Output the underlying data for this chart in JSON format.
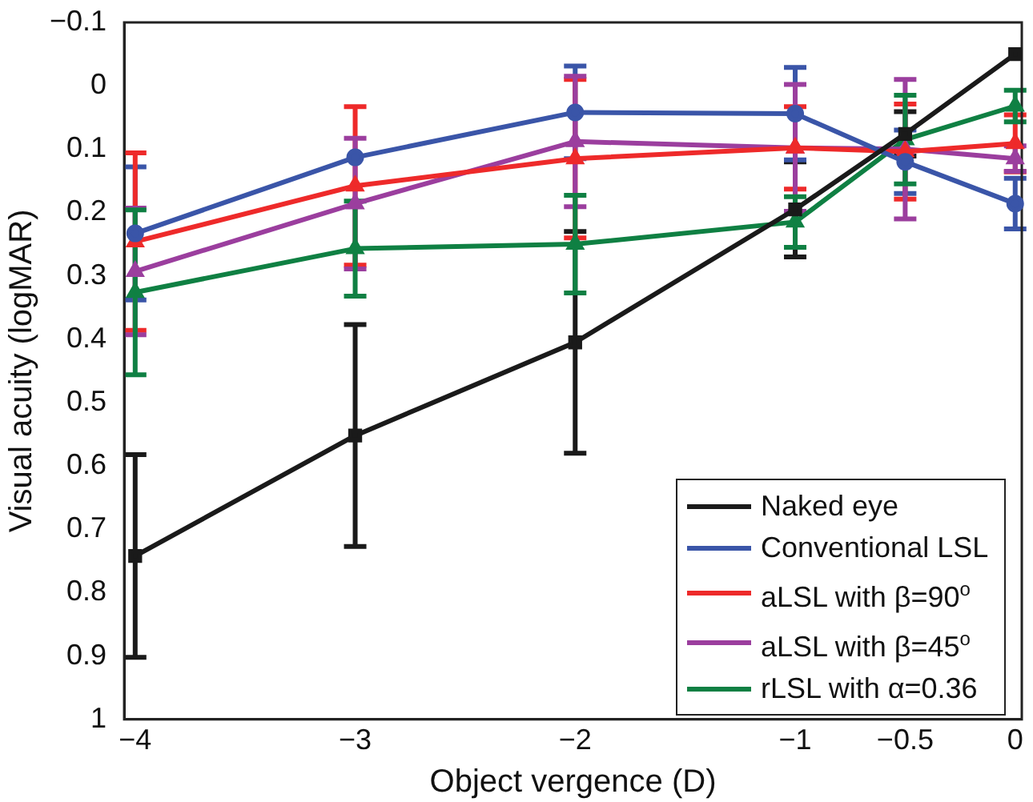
{
  "chart_data": {
    "type": "line",
    "xlabel": "Object vergence (D)",
    "ylabel": "Visual acuity (logMAR)",
    "x": [
      -4,
      -3,
      -2,
      -1,
      -0.5,
      0
    ],
    "xlim": [
      -4.05,
      0.03
    ],
    "xticks": [
      {
        "value": -4,
        "label": "−4"
      },
      {
        "value": -3,
        "label": "−3"
      },
      {
        "value": -2,
        "label": "−2"
      },
      {
        "value": -1,
        "label": "−1"
      },
      {
        "value": -0.5,
        "label": "−0.5"
      },
      0
    ],
    "ylim": [
      1,
      -0.1
    ],
    "yticks": [
      {
        "value": -0.1,
        "label": "−0.1"
      },
      0,
      0.1,
      0.2,
      0.3,
      0.4,
      0.5,
      0.6,
      0.7,
      0.8,
      0.9,
      1
    ],
    "grid": false,
    "legend": "bottom right",
    "series": [
      {
        "name": "Naked eye",
        "color": "#1a1a1a",
        "marker": "square",
        "values": [
          0.742,
          0.552,
          0.405,
          0.195,
          0.076,
          -0.05
        ],
        "errors": [
          0.16,
          0.175,
          0.175,
          0.075,
          0.035,
          null
        ]
      },
      {
        "name": "Conventional LSL",
        "color": "#3a55a8",
        "marker": "circle",
        "values": [
          0.233,
          0.113,
          0.042,
          0.044,
          0.12,
          0.186
        ],
        "errors": [
          0.105,
          null,
          0.073,
          0.073,
          0.05,
          0.04
        ]
      },
      {
        "name": "aLSL with β=90$^{o}$",
        "color": "#ee2a2a",
        "marker": "triangle",
        "values": [
          0.246,
          0.158,
          0.115,
          0.098,
          0.104,
          0.091
        ],
        "errors": [
          0.14,
          0.125,
          0.125,
          0.065,
          0.075,
          0.045
        ]
      },
      {
        "name": "aLSL with β=45$^{o}$",
        "color": "#9b3e9e",
        "marker": "triangle",
        "values": [
          0.293,
          0.186,
          0.088,
          0.098,
          0.1,
          0.115
        ],
        "errors": [
          0.1,
          0.103,
          0.103,
          0.1,
          0.11,
          0.02
        ]
      },
      {
        "name": "rLSL with α=0.36",
        "color": "#0f8043",
        "marker": "triangle",
        "values": [
          0.326,
          0.257,
          0.25,
          0.215,
          0.085,
          0.032
        ],
        "errors": [
          0.13,
          0.075,
          0.077,
          0.04,
          0.07,
          0.025
        ]
      }
    ]
  }
}
